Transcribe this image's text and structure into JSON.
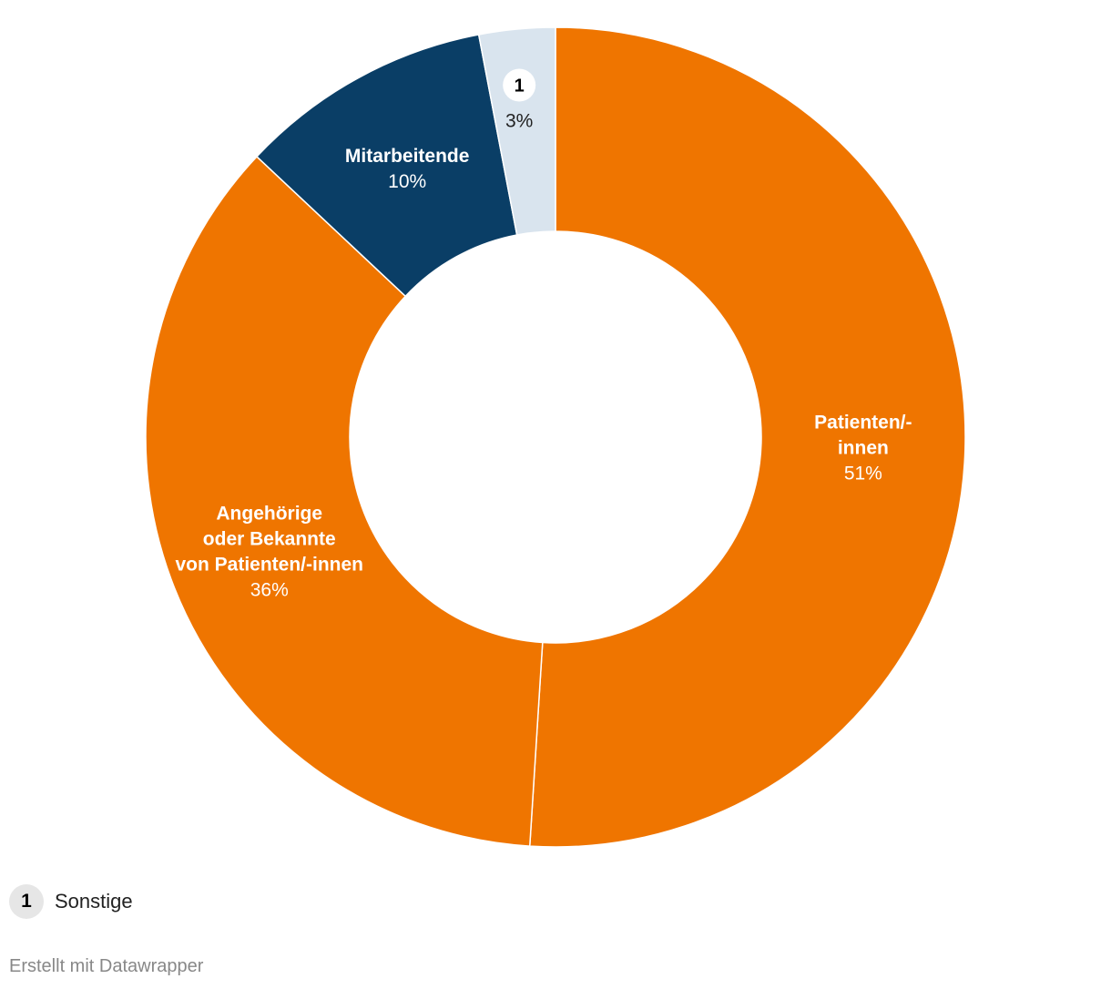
{
  "chart_data": {
    "type": "pie",
    "variant": "donut",
    "slices": [
      {
        "label": "Patienten/-innen",
        "label_lines": [
          "Patienten/-",
          "innen"
        ],
        "value": 51,
        "display": "51%",
        "color": "#ef7500",
        "label_color": "#ffffff"
      },
      {
        "label": "Angehörige oder Bekannte von Patienten/-innen",
        "label_lines": [
          "Angehörige",
          "oder Bekannte",
          "von Patienten/-innen"
        ],
        "value": 36,
        "display": "36%",
        "color": "#ef7500",
        "label_color": "#ffffff"
      },
      {
        "label": "Mitarbeitende",
        "label_lines": [
          "Mitarbeitende"
        ],
        "value": 10,
        "display": "10%",
        "color": "#0a3e66",
        "label_color": "#ffffff"
      },
      {
        "label": "Sonstige",
        "label_lines": [],
        "marker": "1",
        "value": 3,
        "display": "3%",
        "color": "#d9e4ee",
        "label_color": "#222222"
      }
    ]
  },
  "footnote": {
    "marker": "1",
    "label": "Sonstige"
  },
  "credit": "Erstellt mit Datawrapper"
}
